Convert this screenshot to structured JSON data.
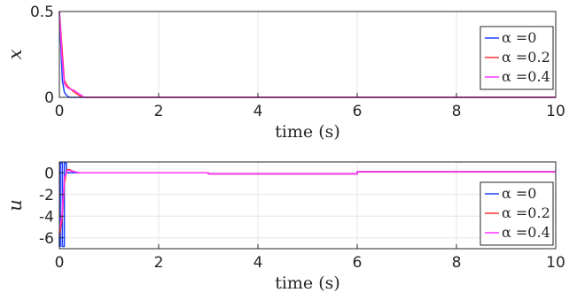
{
  "chart_data": [
    {
      "type": "line",
      "xlabel": "time (s)",
      "ylabel": "x",
      "xlim": [
        0,
        10
      ],
      "ylim": [
        0,
        0.5
      ],
      "xticks": [
        0,
        2,
        4,
        6,
        8,
        10
      ],
      "xtick_labels": [
        "0",
        "2",
        "4",
        "6",
        "8",
        "10"
      ],
      "yticks": [
        0,
        0.5
      ],
      "ytick_labels": [
        "0",
        "0.5"
      ],
      "grid": true,
      "legend": "top-right",
      "series": [
        {
          "name": "α =0",
          "color": "#1f3fff",
          "x": [
            0,
            0.03,
            0.06,
            0.1,
            0.15,
            0.2,
            0.3,
            10
          ],
          "y": [
            0.5,
            0.3,
            0.1,
            0.03,
            0.01,
            0.0,
            0.0,
            0.0
          ]
        },
        {
          "name": "α =0.2",
          "color": "#ff3333",
          "x": [
            0,
            0.05,
            0.1,
            0.15,
            0.22,
            0.3,
            0.4,
            0.5,
            10
          ],
          "y": [
            0.5,
            0.3,
            0.1,
            0.07,
            0.05,
            0.03,
            0.01,
            0.0,
            0.0
          ]
        },
        {
          "name": "α =0.4",
          "color": "#ff33ff",
          "x": [
            0,
            0.05,
            0.1,
            0.15,
            0.2,
            0.3,
            0.4,
            0.5,
            10
          ],
          "y": [
            0.5,
            0.25,
            0.08,
            0.06,
            0.05,
            0.04,
            0.02,
            0.0,
            0.0
          ]
        }
      ]
    },
    {
      "type": "line",
      "xlabel": "time (s)",
      "ylabel": "u",
      "xlim": [
        0,
        10
      ],
      "ylim": [
        -7,
        1
      ],
      "xticks": [
        0,
        2,
        4,
        6,
        8,
        10
      ],
      "xtick_labels": [
        "0",
        "2",
        "4",
        "6",
        "8",
        "10"
      ],
      "yticks": [
        -6,
        -4,
        -2,
        0
      ],
      "ytick_labels": [
        "-6",
        "-4",
        "-2",
        "0"
      ],
      "grid": true,
      "legend": "bottom-right",
      "series": [
        {
          "name": "α =0",
          "color": "#1f3fff",
          "x": [
            0,
            0,
            0.02,
            0.02,
            0.06,
            0.06,
            0.1,
            0.1,
            0.14,
            0.14,
            0.2,
            3,
            3,
            6,
            6,
            10
          ],
          "y": [
            -5.5,
            -6.8,
            -6.8,
            0.9,
            0.9,
            -6.8,
            -6.8,
            0.9,
            0.9,
            0.0,
            0.0,
            0.0,
            -0.1,
            -0.1,
            0.1,
            0.1
          ]
        },
        {
          "name": "α =0.2",
          "color": "#ff3333",
          "x": [
            0,
            0.05,
            0.1,
            0.15,
            0.2,
            0.3,
            0.4,
            0.5,
            3,
            3,
            6,
            6,
            10
          ],
          "y": [
            -5.8,
            -4.5,
            -1.0,
            0.3,
            0.3,
            0.1,
            0.0,
            0.0,
            0.0,
            -0.1,
            -0.1,
            0.1,
            0.1
          ]
        },
        {
          "name": "α =0.4",
          "color": "#ff33ff",
          "x": [
            0,
            0.05,
            0.1,
            0.15,
            0.2,
            0.3,
            0.4,
            0.5,
            3,
            3,
            6,
            6,
            10
          ],
          "y": [
            -5.3,
            -4.0,
            -0.5,
            0.2,
            0.2,
            0.1,
            0.0,
            0.0,
            0.0,
            -0.1,
            -0.1,
            0.1,
            0.1
          ]
        }
      ]
    }
  ]
}
